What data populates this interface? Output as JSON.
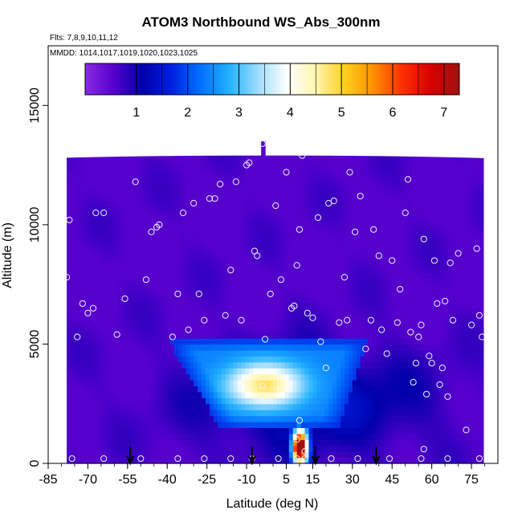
{
  "chart_data": {
    "type": "heatmap",
    "title": "ATOM3 Northbound WS_Abs_300nm",
    "notes": [
      "Flts: 7,8,9,10,11,12",
      "MMDD: 1014,1017,1019,1020,1023,1025"
    ],
    "xlabel": "Latitude (deg N)",
    "ylabel": "Altitude (m)",
    "xlim": [
      -85,
      85
    ],
    "ylim": [
      0,
      17500
    ],
    "xticks": [
      -85,
      -70,
      -55,
      -40,
      -25,
      -10,
      5,
      15,
      30,
      45,
      60,
      75
    ],
    "xtick_labels": [
      "-85",
      "-70",
      "-55",
      "-40",
      "-25",
      "-10",
      "5",
      "15",
      "30",
      "45",
      "60",
      "75"
    ],
    "yticks": [
      0,
      5000,
      10000,
      15000
    ],
    "ytick_labels": [
      "0",
      "5000",
      "10000",
      "15000"
    ],
    "colorbar": {
      "range": [
        0,
        7.3
      ],
      "ticks": [
        1,
        2,
        3,
        4,
        5,
        6,
        7
      ],
      "tick_labels": [
        "1",
        "2",
        "3",
        "4",
        "5",
        "6",
        "7"
      ],
      "colors": [
        "#8a2be2",
        "#5500cc",
        "#0000aa",
        "#0020e0",
        "#0070ff",
        "#22b0ff",
        "#9ddcff",
        "#ffffff",
        "#fff6b0",
        "#ffd020",
        "#ff9000",
        "#ff3000",
        "#d80000",
        "#a01010"
      ]
    },
    "arrows_x": [
      -54,
      -8,
      16,
      39
    ],
    "base_value": 0.55,
    "high_value_regions": [
      {
        "lat_range": [
          -40,
          36
        ],
        "alt_range": [
          1500,
          5200
        ],
        "peak": 4.6,
        "peak_lat": -3,
        "peak_alt": 3300
      },
      {
        "lat_range": [
          6,
          15
        ],
        "alt_range": [
          0,
          1400
        ],
        "peak": 7.0,
        "peak_lat": 10,
        "peak_alt": 700
      }
    ],
    "samples": [
      {
        "lat": -77,
        "alt": 10200
      },
      {
        "lat": -78,
        "alt": 7800
      },
      {
        "lat": -74,
        "alt": 5300
      },
      {
        "lat": -72,
        "alt": 6700
      },
      {
        "lat": -70,
        "alt": 6300
      },
      {
        "lat": -68,
        "alt": 6500
      },
      {
        "lat": -67,
        "alt": 10500
      },
      {
        "lat": -64,
        "alt": 10500
      },
      {
        "lat": -59,
        "alt": 5400
      },
      {
        "lat": -56,
        "alt": 6900
      },
      {
        "lat": -52,
        "alt": 11800
      },
      {
        "lat": -48,
        "alt": 7700
      },
      {
        "lat": -46,
        "alt": 9700
      },
      {
        "lat": -44,
        "alt": 9900
      },
      {
        "lat": -43,
        "alt": 10000
      },
      {
        "lat": -38,
        "alt": 5300
      },
      {
        "lat": -36,
        "alt": 7100
      },
      {
        "lat": -34,
        "alt": 10500
      },
      {
        "lat": -32,
        "alt": 5600
      },
      {
        "lat": -30,
        "alt": 10900
      },
      {
        "lat": -28,
        "alt": 7100
      },
      {
        "lat": -26,
        "alt": 6000
      },
      {
        "lat": -24,
        "alt": 11100
      },
      {
        "lat": -22,
        "alt": 11100
      },
      {
        "lat": -20,
        "alt": 11700
      },
      {
        "lat": -18,
        "alt": 6200
      },
      {
        "lat": -16,
        "alt": 8100
      },
      {
        "lat": -14,
        "alt": 11800
      },
      {
        "lat": -12,
        "alt": 6000
      },
      {
        "lat": -10,
        "alt": 12500
      },
      {
        "lat": -9,
        "alt": 12600
      },
      {
        "lat": -7,
        "alt": 8900
      },
      {
        "lat": -6,
        "alt": 8700
      },
      {
        "lat": -4,
        "alt": 13400
      },
      {
        "lat": -3,
        "alt": 5200
      },
      {
        "lat": -1,
        "alt": 7100
      },
      {
        "lat": 1,
        "alt": 10800
      },
      {
        "lat": 3,
        "alt": 7700
      },
      {
        "lat": 5,
        "alt": 12200
      },
      {
        "lat": 7,
        "alt": 6500
      },
      {
        "lat": 8,
        "alt": 6600
      },
      {
        "lat": 9,
        "alt": 8300
      },
      {
        "lat": 10,
        "alt": 9800
      },
      {
        "lat": 11,
        "alt": 12900
      },
      {
        "lat": 13,
        "alt": 6300
      },
      {
        "lat": 15,
        "alt": 6100
      },
      {
        "lat": 17,
        "alt": 10300
      },
      {
        "lat": 18,
        "alt": 5100
      },
      {
        "lat": 20,
        "alt": 4000
      },
      {
        "lat": 21,
        "alt": 10900
      },
      {
        "lat": 23,
        "alt": 11000
      },
      {
        "lat": 25,
        "alt": 5900
      },
      {
        "lat": 27,
        "alt": 7800
      },
      {
        "lat": 28,
        "alt": 6000
      },
      {
        "lat": 29,
        "alt": 12200
      },
      {
        "lat": 31,
        "alt": 9700
      },
      {
        "lat": 33,
        "alt": 11200
      },
      {
        "lat": 35,
        "alt": 4800
      },
      {
        "lat": 37,
        "alt": 6000
      },
      {
        "lat": 38,
        "alt": 9800
      },
      {
        "lat": 40,
        "alt": 8700
      },
      {
        "lat": 41,
        "alt": 5600
      },
      {
        "lat": 43,
        "alt": 4600
      },
      {
        "lat": 45,
        "alt": 8500
      },
      {
        "lat": 47,
        "alt": 5900
      },
      {
        "lat": 48,
        "alt": 7300
      },
      {
        "lat": 50,
        "alt": 10500
      },
      {
        "lat": 51,
        "alt": 11900
      },
      {
        "lat": 52,
        "alt": 5500
      },
      {
        "lat": 53,
        "alt": 3400
      },
      {
        "lat": 54,
        "alt": 4200
      },
      {
        "lat": 55,
        "alt": 5300
      },
      {
        "lat": 56,
        "alt": 5800
      },
      {
        "lat": 57,
        "alt": 9400
      },
      {
        "lat": 57,
        "alt": 600
      },
      {
        "lat": 58,
        "alt": 2900
      },
      {
        "lat": 59,
        "alt": 4500
      },
      {
        "lat": 60,
        "alt": 4200
      },
      {
        "lat": 61,
        "alt": 8500
      },
      {
        "lat": 62,
        "alt": 6700
      },
      {
        "lat": 63,
        "alt": 3300
      },
      {
        "lat": 64,
        "alt": 4000
      },
      {
        "lat": 65,
        "alt": 6800
      },
      {
        "lat": 66,
        "alt": 2800
      },
      {
        "lat": 67,
        "alt": 8400
      },
      {
        "lat": 68,
        "alt": 6000
      },
      {
        "lat": 70,
        "alt": 8800
      },
      {
        "lat": 73,
        "alt": 1400
      },
      {
        "lat": 75,
        "alt": 5800
      },
      {
        "lat": 77,
        "alt": 9000
      },
      {
        "lat": 78,
        "alt": 6200
      },
      {
        "lat": 79,
        "alt": 5300
      },
      {
        "lat": -76,
        "alt": 200
      },
      {
        "lat": -64,
        "alt": 200
      },
      {
        "lat": -50,
        "alt": 200
      },
      {
        "lat": -36,
        "alt": 200
      },
      {
        "lat": -26,
        "alt": 200
      },
      {
        "lat": -16,
        "alt": 200
      },
      {
        "lat": -8,
        "alt": 200
      },
      {
        "lat": 2,
        "alt": 200
      },
      {
        "lat": 9,
        "alt": 200
      },
      {
        "lat": 12,
        "alt": 200
      },
      {
        "lat": 22,
        "alt": 200
      },
      {
        "lat": 32,
        "alt": 200
      },
      {
        "lat": 44,
        "alt": 200
      },
      {
        "lat": 56,
        "alt": 200
      },
      {
        "lat": 66,
        "alt": 200
      },
      {
        "lat": 78,
        "alt": 200
      },
      {
        "lat": -4,
        "alt": 3250
      },
      {
        "lat": 10,
        "alt": 1800
      },
      {
        "lat": 9,
        "alt": 1000
      },
      {
        "lat": 12,
        "alt": 500
      }
    ]
  }
}
